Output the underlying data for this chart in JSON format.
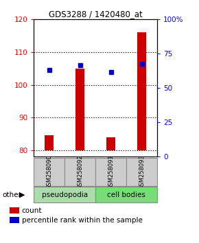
{
  "title": "GDS3288 / 1420480_at",
  "samples": [
    "GSM258090",
    "GSM258092",
    "GSM258091",
    "GSM258093"
  ],
  "bar_values": [
    84.5,
    105.0,
    84.0,
    116.0
  ],
  "dot_values": [
    104.5,
    106.0,
    104.0,
    106.5
  ],
  "ylim_left": [
    78,
    120
  ],
  "ylim_right": [
    0,
    100
  ],
  "yticks_left": [
    80,
    90,
    100,
    110,
    120
  ],
  "yticks_right": [
    0,
    25,
    50,
    75,
    100
  ],
  "bar_color": "#cc0000",
  "dot_color": "#0000cc",
  "bar_bottom": 80,
  "pseudopodia_color": "#aaddaa",
  "cell_bodies_color": "#77dd77",
  "legend_count": "count",
  "legend_pct": "percentile rank within the sample",
  "other_label": "other"
}
